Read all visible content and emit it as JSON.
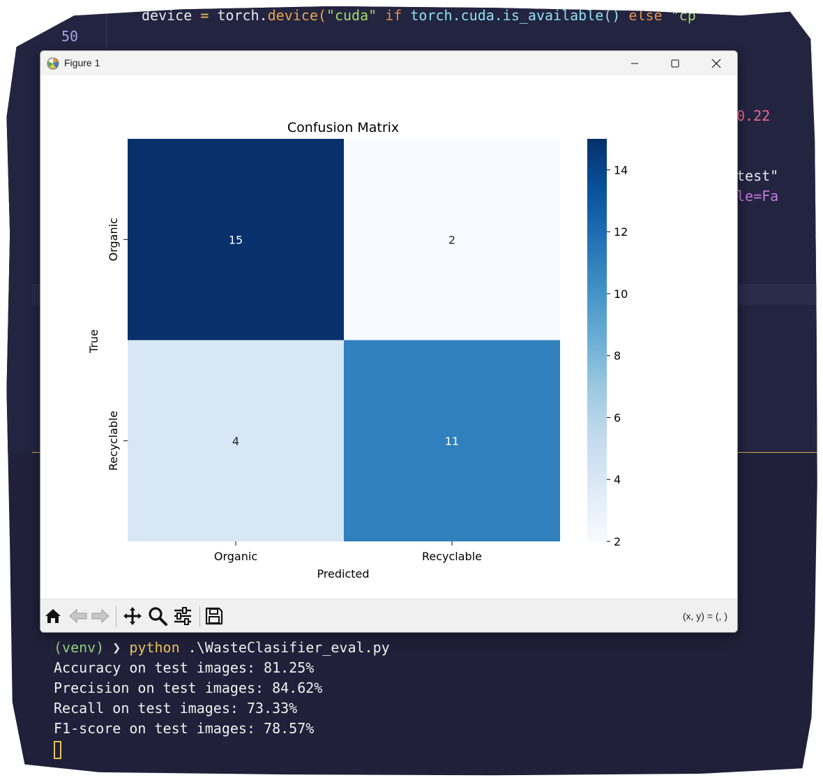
{
  "editor": {
    "line_number": "50",
    "code_line": {
      "t1": "device ",
      "t2": "=",
      "t3": " torch.",
      "t4": "device(",
      "t5": "\"cuda\"",
      "t6": " if ",
      "t7": "torch.cuda.is_available()",
      "t8": " else ",
      "t9": "\"cp"
    },
    "peek_1": "0.22",
    "peek_2": "test\"",
    "peek_3": "le=Fa"
  },
  "window": {
    "title": "Figure 1",
    "coord_readout": "(x, y) = (, )"
  },
  "toolbar": {
    "buttons": [
      "home-icon",
      "back-icon",
      "forward-icon",
      "pan-icon",
      "zoom-icon",
      "configure-subplots-icon",
      "save-icon"
    ]
  },
  "chart_data": {
    "type": "heatmap",
    "title": "Confusion Matrix",
    "xlabel": "Predicted",
    "ylabel": "True",
    "x_categories": [
      "Organic",
      "Recyclable"
    ],
    "y_categories": [
      "Organic",
      "Recyclable"
    ],
    "values": [
      [
        15,
        2
      ],
      [
        4,
        11
      ]
    ],
    "colormap": "Blues",
    "color_range": [
      2,
      15
    ],
    "colorbar_ticks": [
      2,
      4,
      6,
      8,
      10,
      12,
      14
    ],
    "colors": {
      "low": "#f7fbff",
      "high": "#08306b"
    }
  },
  "terminal": {
    "prompt_env": "(venv)",
    "prompt_chevron": "❯",
    "command": "python",
    "command_args": " .\\WasteClasifier_eval.py",
    "lines": [
      "Accuracy on test images: 81.25%",
      "Precision on test images: 84.62%",
      "Recall on test images: 73.33%",
      "F1-score on test images: 78.57%"
    ]
  }
}
